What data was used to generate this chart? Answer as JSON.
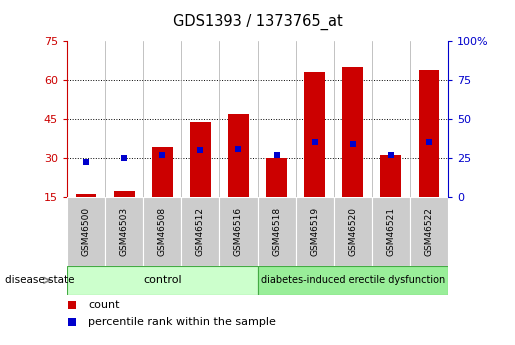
{
  "title": "GDS1393 / 1373765_at",
  "samples": [
    "GSM46500",
    "GSM46503",
    "GSM46508",
    "GSM46512",
    "GSM46516",
    "GSM46518",
    "GSM46519",
    "GSM46520",
    "GSM46521",
    "GSM46522"
  ],
  "count_values": [
    16,
    17,
    34,
    44,
    47,
    30,
    63,
    65,
    31,
    64
  ],
  "percentile_values": [
    22,
    25,
    27,
    30,
    31,
    27,
    35,
    34,
    27,
    35
  ],
  "ylim_left": [
    15,
    75
  ],
  "yticks_left": [
    15,
    30,
    45,
    60,
    75
  ],
  "ylim_right": [
    0,
    100
  ],
  "yticks_right": [
    0,
    25,
    50,
    75,
    100
  ],
  "control_samples": 5,
  "disease_samples": 5,
  "control_label": "control",
  "disease_label": "diabetes-induced erectile dysfunction",
  "legend_count": "count",
  "legend_percentile": "percentile rank within the sample",
  "disease_state_label": "disease state",
  "bar_color": "#cc0000",
  "percentile_color": "#0000cc",
  "control_bg": "#ccffcc",
  "disease_bg": "#99ee99",
  "xlabel_bg": "#cccccc",
  "bar_width": 0.55,
  "left_tick_color": "#cc0000",
  "right_tick_color": "#0000cc",
  "grid_color": "#000000",
  "percentile_marker_size": 5,
  "bar_bottom": 15
}
